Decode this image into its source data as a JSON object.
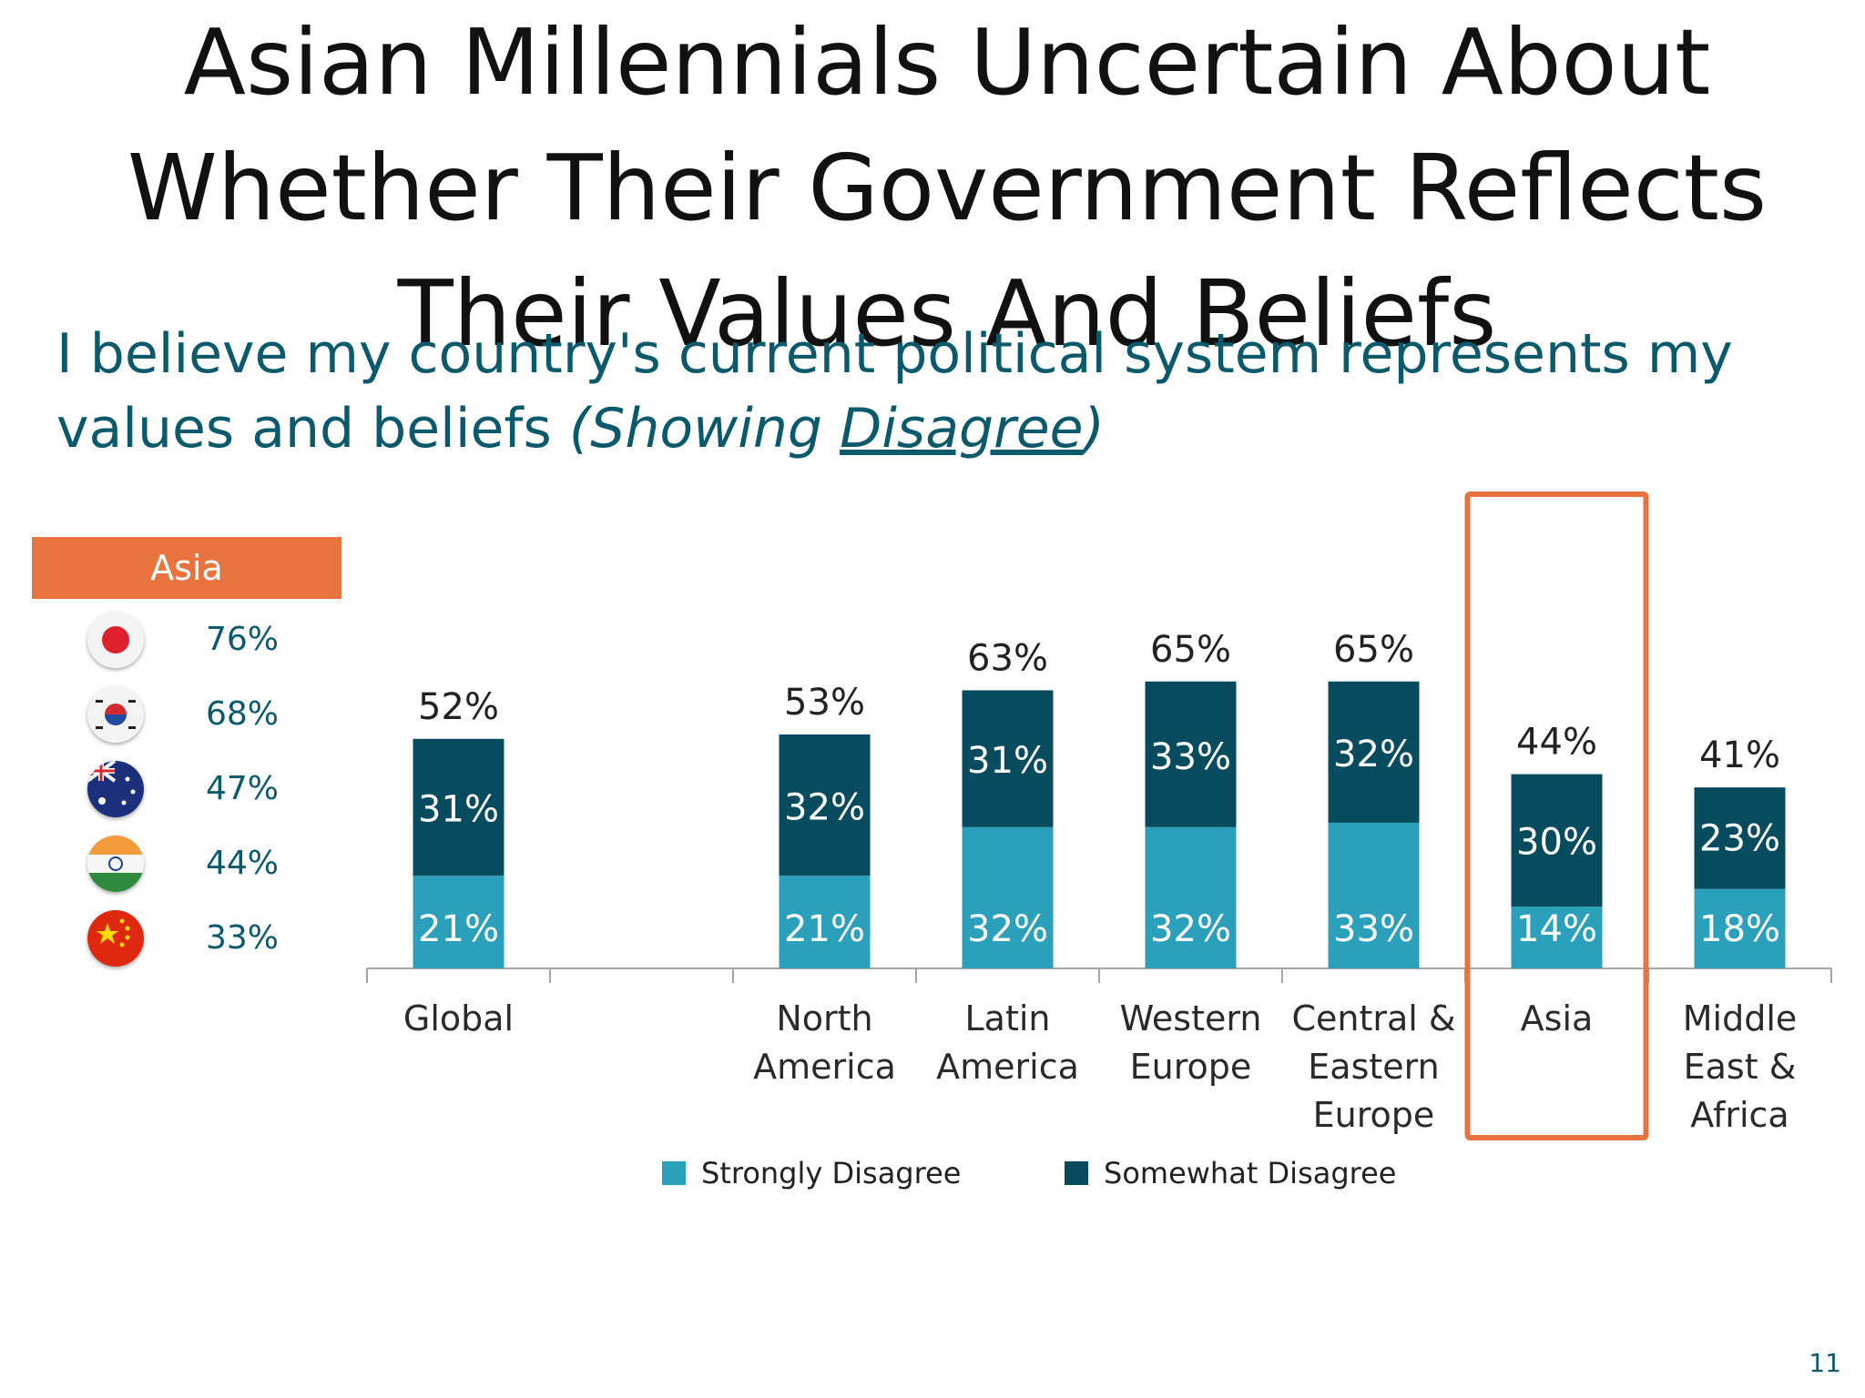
{
  "slide": {
    "title": "Asian Millennials Uncertain About Whether Their Government Reflects Their Values And Beliefs",
    "subtitle_main": "I believe my country's current political system represents my values and beliefs ",
    "subtitle_open": "(Showing ",
    "subtitle_underlined": "Disagree",
    "subtitle_close": ")",
    "page_number": "11"
  },
  "asia_panel": {
    "header": "Asia",
    "countries": [
      {
        "flag": "japan-flag-icon",
        "value": "76%"
      },
      {
        "flag": "south-korea-flag-icon",
        "value": "68%"
      },
      {
        "flag": "australia-flag-icon",
        "value": "47%"
      },
      {
        "flag": "india-flag-icon",
        "value": "44%"
      },
      {
        "flag": "china-flag-icon",
        "value": "33%"
      }
    ]
  },
  "chart_data": {
    "type": "bar",
    "stacked": true,
    "categories": [
      "Global",
      "",
      "North America",
      "Latin America",
      "Western Europe",
      "Central & Eastern Europe",
      "Asia",
      "Middle East & Africa"
    ],
    "category_label_lines": [
      [
        "Global"
      ],
      [],
      [
        "North",
        "America"
      ],
      [
        "Latin",
        "America"
      ],
      [
        "Western",
        "Europe"
      ],
      [
        "Central &",
        "Eastern",
        "Europe"
      ],
      [
        "Asia"
      ],
      [
        "Middle",
        "East &",
        "Africa"
      ]
    ],
    "series": [
      {
        "name": "Strongly Disagree",
        "color": "#2ba0ba",
        "values": [
          21,
          null,
          21,
          32,
          32,
          33,
          14,
          18
        ]
      },
      {
        "name": "Somewhat Disagree",
        "color": "#074b5f",
        "values": [
          31,
          null,
          32,
          31,
          33,
          32,
          30,
          23
        ]
      }
    ],
    "totals": [
      52,
      null,
      53,
      63,
      65,
      65,
      44,
      41
    ],
    "highlight_category": "Asia",
    "highlight_color": "#e8733e",
    "ylim": [
      0,
      70
    ],
    "grid": false,
    "legend": "bottom"
  }
}
